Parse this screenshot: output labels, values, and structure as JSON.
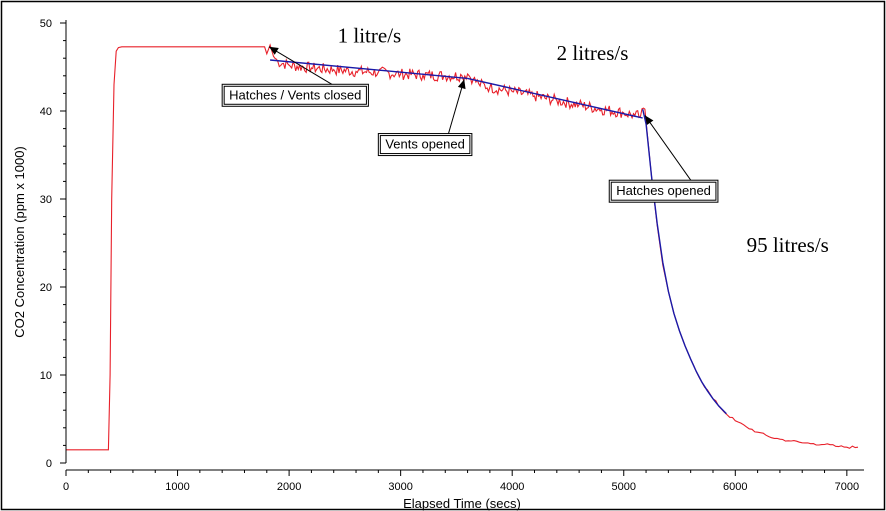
{
  "chart_data": {
    "type": "line",
    "xlabel": "Elapsed Time (secs)",
    "ylabel": "CO2 Concentration (ppm x 1000)",
    "xlim": [
      0,
      7100
    ],
    "ylim": [
      0,
      50
    ],
    "xticks": [
      0,
      1000,
      2000,
      3000,
      4000,
      5000,
      6000,
      7000
    ],
    "yticks": [
      0,
      10,
      20,
      30,
      40,
      50
    ],
    "grid": false,
    "series": [
      {
        "color": "#e8202a",
        "kind": "measured",
        "x": [
          0,
          380,
          395,
          410,
          430,
          450,
          470,
          500,
          600,
          800,
          1000,
          1200,
          1400,
          1600,
          1780,
          1800,
          1830,
          1860,
          1900,
          2000,
          2200,
          2400,
          2600,
          2800,
          3000,
          3200,
          3400,
          3550,
          3600,
          3650,
          3700,
          3800,
          4000,
          4200,
          4400,
          4600,
          4800,
          5000,
          5100,
          5150,
          5190,
          5210,
          5250,
          5300,
          5350,
          5400,
          5450,
          5500,
          5550,
          5600,
          5700,
          5800,
          5900,
          6000,
          6100,
          6200,
          6300,
          6400,
          6500,
          6600,
          6700,
          6800,
          6900,
          7000,
          7100
        ],
        "y": [
          1.5,
          1.5,
          10,
          30,
          43,
          46.8,
          47.2,
          47.3,
          47.3,
          47.3,
          47.3,
          47.3,
          47.3,
          47.3,
          47.3,
          46.5,
          47.5,
          46.2,
          45.6,
          45.2,
          44.9,
          44.7,
          44.5,
          44.4,
          44.2,
          44.1,
          44.0,
          44.0,
          44.2,
          43.6,
          43.1,
          42.7,
          42.2,
          41.7,
          41.2,
          40.7,
          40.2,
          39.8,
          39.5,
          39.4,
          40.2,
          37.5,
          32.5,
          27,
          22.5,
          19.5,
          17,
          15,
          13.3,
          11.8,
          9.2,
          7.3,
          5.8,
          4.8,
          4.1,
          3.5,
          3.0,
          2.7,
          2.5,
          2.3,
          2.2,
          2.1,
          1.9,
          1.8,
          1.8
        ]
      },
      {
        "color": "#1a1aa8",
        "kind": "fit",
        "segments": [
          {
            "x": [
              1830,
              3600
            ],
            "y": [
              45.8,
              43.7
            ]
          },
          {
            "x": [
              3600,
              5170
            ],
            "y": [
              43.7,
              39.2
            ]
          },
          {
            "x": [
              5170,
              5200,
              5250,
              5300,
              5350,
              5400,
              5450,
              5500,
              5550,
              5600,
              5650,
              5700,
              5750,
              5800,
              5850,
              5920
            ],
            "y": [
              40.2,
              38.5,
              32.5,
              27.2,
              22.8,
              19.5,
              17.0,
              15.0,
              13.3,
              11.8,
              10.4,
              9.2,
              8.2,
              7.3,
              6.5,
              5.6
            ]
          }
        ]
      }
    ],
    "annotations": [
      {
        "text": "1 litre/s",
        "x": 2720,
        "y": 47.8
      },
      {
        "text": "2 litres/s",
        "x": 4720,
        "y": 45.8
      },
      {
        "text": "95 litres/s",
        "x": 6470,
        "y": 24.0
      }
    ],
    "callouts": [
      {
        "text": "Hatches / Vents closed",
        "box_x": 1400,
        "box_y": 41.9,
        "arrow_to_x": 1820,
        "arrow_to_y": 47.3
      },
      {
        "text": "Vents opened",
        "box_x": 2800,
        "box_y": 36.3,
        "arrow_to_x": 3570,
        "arrow_to_y": 43.6
      },
      {
        "text": "Hatches opened",
        "box_x": 4870,
        "box_y": 31.0,
        "arrow_to_x": 5190,
        "arrow_to_y": 39.5
      }
    ]
  }
}
